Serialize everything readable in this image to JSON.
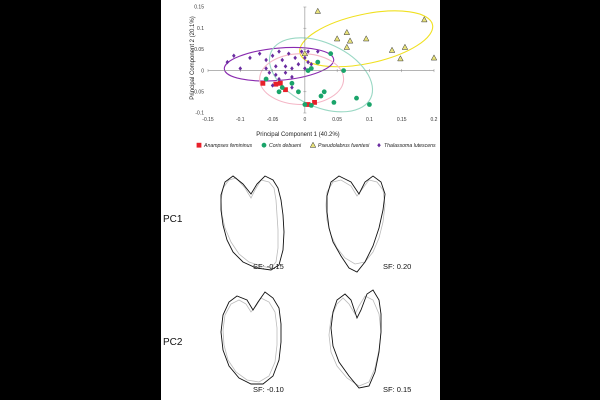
{
  "chart_data": {
    "type": "scatter",
    "xlabel": "Principal Component 1 (40.2%)",
    "ylabel": "Principal Component 2 (20.1%)",
    "xlim": [
      -0.15,
      0.2
    ],
    "ylim": [
      -0.1,
      0.15
    ],
    "x_ticks": [
      "-0.15",
      "-0.1",
      "-0.05",
      "0",
      "0.05",
      "0.1",
      "0.15",
      "0.2"
    ],
    "y_ticks": [
      "-0.1",
      "-0.05",
      "0",
      "0.05",
      "0.1",
      "0.15"
    ],
    "grid": false,
    "legend_position": "bottom",
    "series": [
      {
        "name": "Anampses femininus",
        "color": "#e8202a",
        "marker": "square",
        "points": [
          [
            -0.065,
            -0.03
          ],
          [
            -0.045,
            -0.032
          ],
          [
            -0.038,
            -0.03
          ],
          [
            -0.03,
            -0.045
          ],
          [
            0.005,
            -0.08
          ],
          [
            0.015,
            -0.075
          ]
        ]
      },
      {
        "name": "Coris debueni",
        "color": "#1aa46a",
        "marker": "circle",
        "points": [
          [
            -0.06,
            -0.02
          ],
          [
            -0.04,
            -0.05
          ],
          [
            -0.035,
            -0.04
          ],
          [
            -0.02,
            -0.03
          ],
          [
            -0.01,
            -0.05
          ],
          [
            0.0,
            -0.08
          ],
          [
            0.005,
            0.0
          ],
          [
            0.01,
            0.005
          ],
          [
            0.02,
            0.02
          ],
          [
            0.025,
            -0.06
          ],
          [
            0.03,
            -0.05
          ],
          [
            0.04,
            0.04
          ],
          [
            0.045,
            -0.075
          ],
          [
            0.06,
            0.0
          ],
          [
            0.08,
            -0.065
          ],
          [
            0.1,
            -0.08
          ],
          [
            0.01,
            -0.082
          ]
        ]
      },
      {
        "name": "Pseudolabrus fuentesi",
        "color": "#e8e27a",
        "marker": "triangle",
        "points": [
          [
            0.0,
            0.04
          ],
          [
            0.05,
            0.075
          ],
          [
            0.065,
            0.09
          ],
          [
            0.07,
            0.07
          ],
          [
            0.095,
            0.075
          ],
          [
            0.065,
            0.055
          ],
          [
            0.135,
            0.048
          ],
          [
            0.148,
            0.028
          ],
          [
            0.155,
            0.055
          ],
          [
            0.185,
            0.12
          ],
          [
            0.2,
            0.03
          ],
          [
            0.02,
            0.14
          ]
        ]
      },
      {
        "name": "Thalassoma lutescens",
        "color": "#6a2ca0",
        "marker": "diamond",
        "points": [
          [
            -0.11,
            0.035
          ],
          [
            -0.12,
            0.02
          ],
          [
            -0.1,
            0.005
          ],
          [
            -0.085,
            0.03
          ],
          [
            -0.07,
            0.04
          ],
          [
            -0.06,
            0.025
          ],
          [
            -0.05,
            0.035
          ],
          [
            -0.045,
            0.01
          ],
          [
            -0.04,
            0.045
          ],
          [
            -0.035,
            0.025
          ],
          [
            -0.03,
            0.01
          ],
          [
            -0.025,
            0.04
          ],
          [
            -0.02,
            0.005
          ],
          [
            -0.015,
            0.03
          ],
          [
            -0.01,
            0.015
          ],
          [
            -0.005,
            0.045
          ],
          [
            0.0,
            0.03
          ],
          [
            0.005,
            0.045
          ],
          [
            0.0,
            0.005
          ],
          [
            -0.06,
            0.005
          ],
          [
            -0.055,
            -0.005
          ],
          [
            -0.045,
            -0.01
          ],
          [
            -0.03,
            -0.005
          ],
          [
            -0.02,
            -0.015
          ],
          [
            0.005,
            0.02
          ],
          [
            0.01,
            0.015
          ],
          [
            0.02,
            0.045
          ],
          [
            -0.04,
            -0.02
          ],
          [
            -0.02,
            -0.04
          ],
          [
            -0.05,
            -0.035
          ]
        ]
      }
    ],
    "ellipses": [
      {
        "color": "#f0e020",
        "cx": 0.095,
        "cy": 0.075,
        "rx": 0.105,
        "ry": 0.058,
        "rotate": -12
      },
      {
        "color": "#8a2bb0",
        "cx": -0.04,
        "cy": 0.015,
        "rx": 0.085,
        "ry": 0.038,
        "rotate": -5
      },
      {
        "color": "#9ad8c4",
        "cx": 0.025,
        "cy": -0.01,
        "rx": 0.085,
        "ry": 0.075,
        "rotate": 25
      },
      {
        "color": "#f4b6c6",
        "cx": -0.005,
        "cy": -0.02,
        "rx": 0.065,
        "ry": 0.06,
        "rotate": 0
      }
    ]
  },
  "shape_panels": {
    "rows": [
      "PC1",
      "PC2"
    ],
    "labels": [
      "SF: -0.15",
      "SF: 0.20",
      "SF: -0.10",
      "SF: 0.15"
    ]
  }
}
